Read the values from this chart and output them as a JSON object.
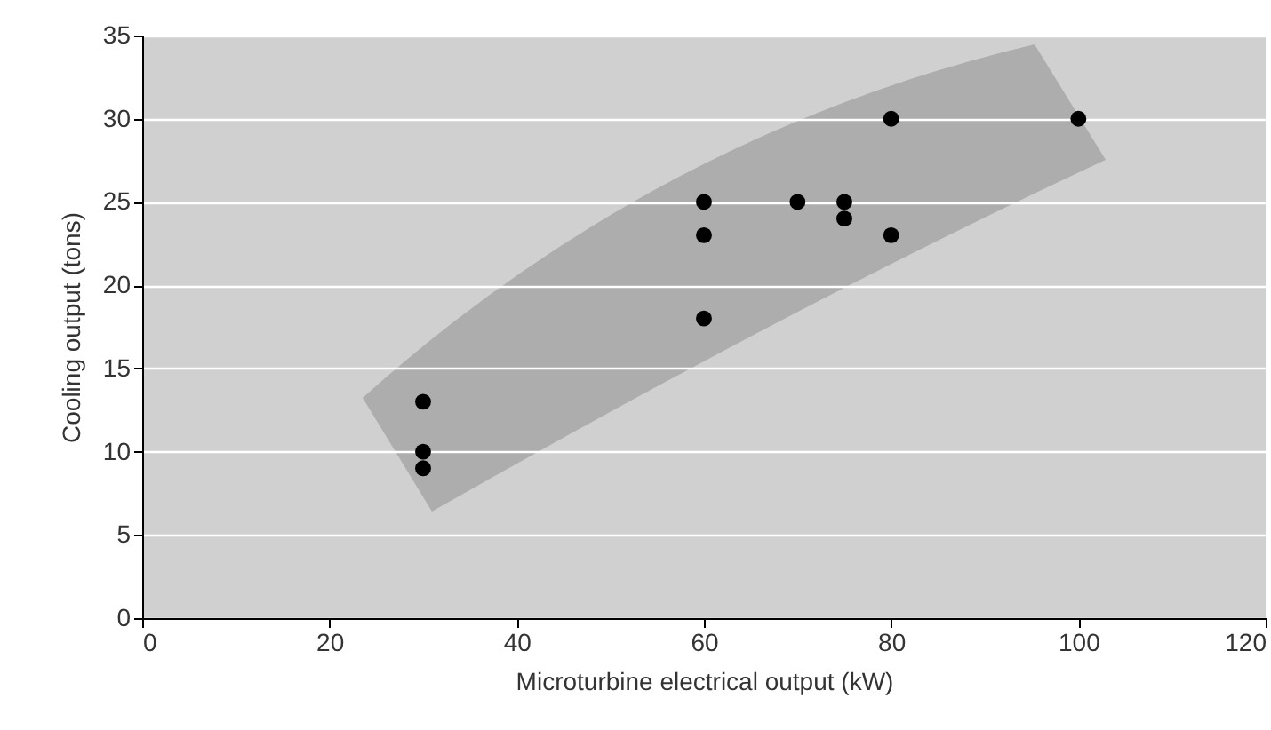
{
  "chart_data": {
    "type": "scatter",
    "xlabel": "Microturbine electrical output (kW)",
    "ylabel": "Cooling output (tons)",
    "x": [
      30,
      30,
      30,
      60,
      60,
      60,
      70,
      75,
      75,
      80,
      80,
      100
    ],
    "series": [
      {
        "color": "#000000",
        "values": [
          13,
          10,
          9,
          25,
          23,
          18,
          25,
          25,
          24,
          30,
          23,
          30
        ]
      }
    ],
    "xlim": [
      0,
      120
    ],
    "xticks": [
      0,
      20,
      40,
      60,
      80,
      100,
      120
    ],
    "ylim": [
      0,
      35
    ],
    "yticks": [
      0,
      5,
      10,
      15,
      20,
      25,
      30,
      35
    ],
    "grid": "y",
    "marker": "circle"
  }
}
